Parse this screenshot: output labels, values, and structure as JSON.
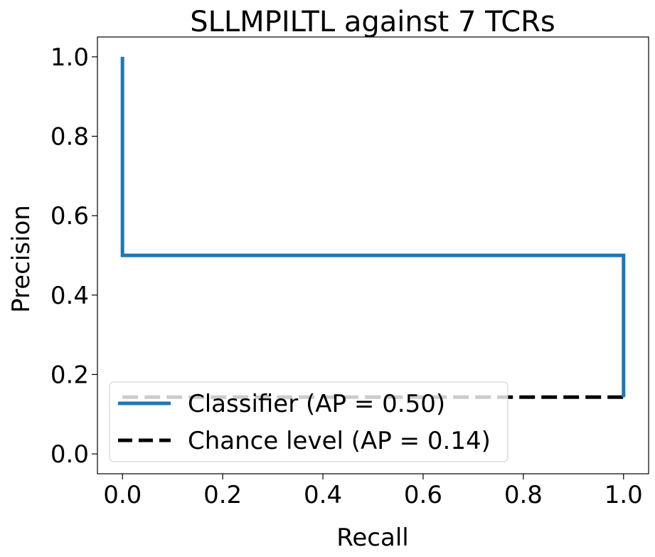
{
  "chart_data": {
    "type": "line",
    "title": "SLLMPILTL against 7 TCRs",
    "xlabel": "Recall",
    "ylabel": "Precision",
    "xlim": [
      -0.05,
      1.05
    ],
    "ylim": [
      -0.05,
      1.05
    ],
    "xticks": [
      "0.0",
      "0.2",
      "0.4",
      "0.6",
      "0.8",
      "1.0"
    ],
    "yticks": [
      "0.0",
      "0.2",
      "0.4",
      "0.6",
      "0.8",
      "1.0"
    ],
    "grid": false,
    "legend_position": "lower-left",
    "series": [
      {
        "name": "Classifier (AP = 0.50)",
        "color": "#1f77b4",
        "style": "solid",
        "x": [
          0.0,
          0.0,
          1.0,
          1.0
        ],
        "y": [
          1.0,
          0.5,
          0.5,
          0.143
        ]
      },
      {
        "name": "Chance level (AP = 0.14)",
        "color": "#000000",
        "style": "dashed",
        "x": [
          0.0,
          1.0
        ],
        "y": [
          0.143,
          0.143
        ]
      }
    ]
  }
}
